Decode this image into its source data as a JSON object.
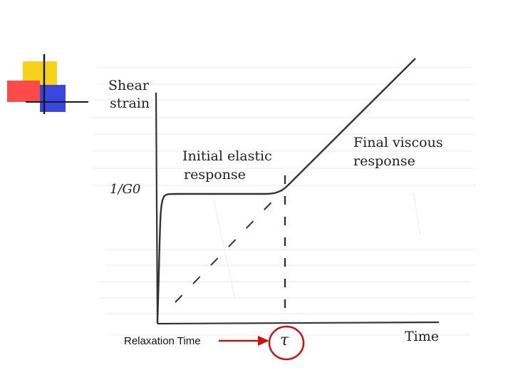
{
  "colors": {
    "deco_yellow": "#f7d21a",
    "deco_red": "#ff4a4a",
    "deco_blue": "#3a46e0",
    "arrow_red": "#cc1111",
    "ink": "#333333"
  },
  "labels": {
    "y_axis_line1": "Shear",
    "y_axis_line2": "strain",
    "y_tick": "1/G0",
    "x_axis": "Time",
    "tau": "τ",
    "initial_line1": "Initial elastic",
    "initial_line2": "response",
    "final_line1": "Final viscous",
    "final_line2": "response",
    "relaxation_time": "Relaxation Time"
  }
}
